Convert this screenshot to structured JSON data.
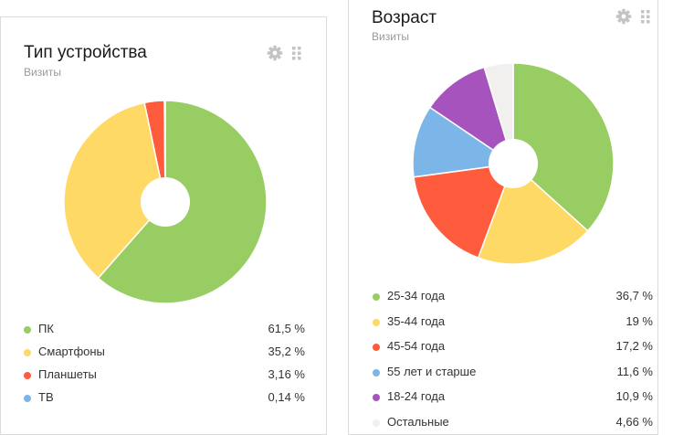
{
  "colors": {
    "green": "#98cd64",
    "yellow": "#ffd966",
    "red": "#ff5b3d",
    "blue": "#7cb5e8",
    "purple": "#a653bd",
    "light": "#f2f0ee"
  },
  "device_card": {
    "title": "Тип устройства",
    "subtitle": "Визиты",
    "gear_icon": "gear-icon",
    "drag_icon": "drag-handle-icon"
  },
  "age_card": {
    "title": "Возраст",
    "subtitle": "Визиты",
    "gear_icon": "gear-icon",
    "drag_icon": "drag-handle-icon"
  },
  "chart_data": [
    {
      "type": "pie",
      "donut": true,
      "series": [
        {
          "name": "ПК",
          "value": 61.5,
          "label": "61,5 %",
          "color": "#98cd64"
        },
        {
          "name": "Смартфоны",
          "value": 35.2,
          "label": "35,2 %",
          "color": "#ffd966"
        },
        {
          "name": "Планшеты",
          "value": 3.16,
          "label": "3,16 %",
          "color": "#ff5b3d"
        },
        {
          "name": "ТВ",
          "value": 0.14,
          "label": "0,14 %",
          "color": "#7cb5e8"
        }
      ]
    },
    {
      "type": "pie",
      "donut": true,
      "series": [
        {
          "name": "25-34 года",
          "value": 36.7,
          "label": "36,7 %",
          "color": "#98cd64"
        },
        {
          "name": "35-44 года",
          "value": 19,
          "label": "19 %",
          "color": "#ffd966"
        },
        {
          "name": "45-54 года",
          "value": 17.2,
          "label": "17,2 %",
          "color": "#ff5b3d"
        },
        {
          "name": "55 лет и старше",
          "value": 11.6,
          "label": "11,6 %",
          "color": "#7cb5e8"
        },
        {
          "name": "18-24 года",
          "value": 10.9,
          "label": "10,9 %",
          "color": "#a653bd"
        },
        {
          "name": "Остальные",
          "value": 4.66,
          "label": "4,66 %",
          "color": "#f2f0ee"
        }
      ]
    }
  ]
}
